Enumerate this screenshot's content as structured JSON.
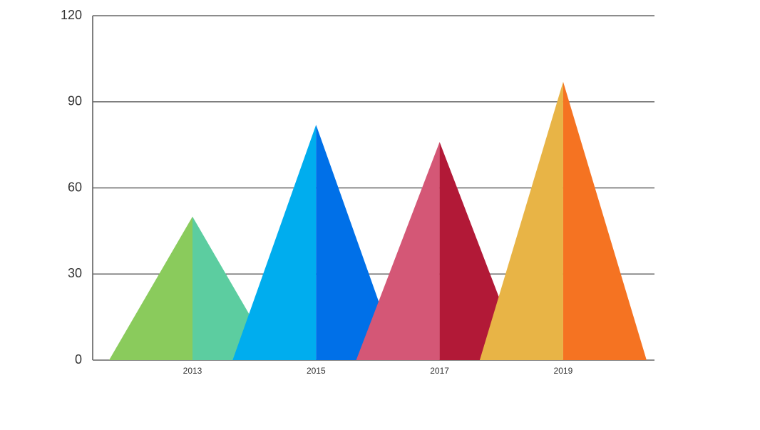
{
  "chart_data": {
    "type": "pyramid",
    "categories": [
      "2013",
      "2015",
      "2017",
      "2019"
    ],
    "values": [
      50,
      82,
      76,
      97
    ],
    "colors": [
      [
        "#8ACB5C",
        "#5CCDA0"
      ],
      [
        "#00ADEE",
        "#0070E8"
      ],
      [
        "#D45776",
        "#B21937"
      ],
      [
        "#E8B446",
        "#F57322"
      ]
    ],
    "ylim": [
      0,
      120
    ],
    "yticks": [
      0,
      30,
      60,
      90,
      120
    ],
    "grid": true
  }
}
